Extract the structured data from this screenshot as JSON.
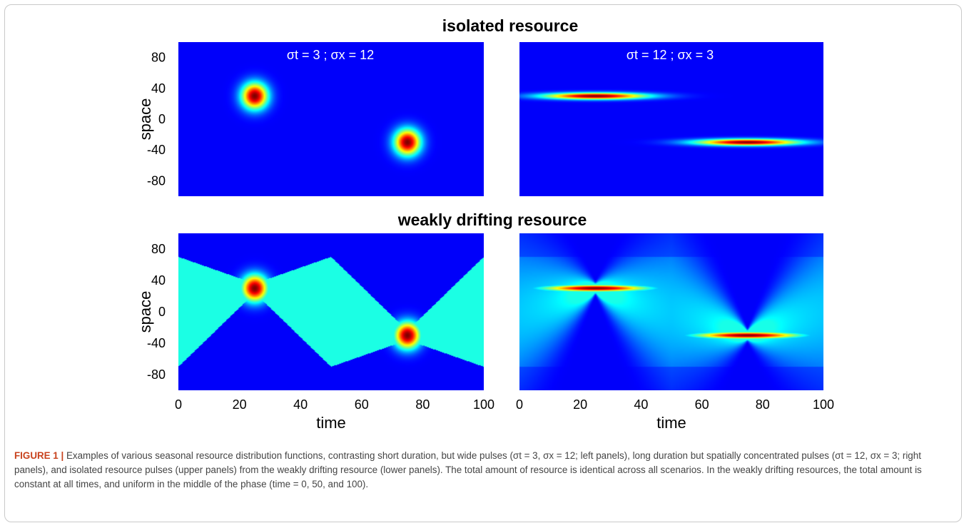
{
  "figure": {
    "caption_label": "FIGURE 1 |",
    "caption_text": "Examples of various seasonal resource distribution functions, contrasting short duration, but wide pulses (σt = 3, σx = 12; left panels), long duration but spatially concentrated pulses (σt = 12, σx = 3; right panels), and isolated resource pulses (upper panels) from the weakly drifting resource (lower panels). The total amount of resource is identical across all scenarios. In the weakly drifting resources, the total amount is constant at all times, and uniform in the middle of the phase (time = 0, 50, and 100)."
  },
  "chart_data": [
    {
      "type": "heatmap",
      "row_title": "isolated resource",
      "panel_label": "σt = 3 ; σx = 12",
      "ylabel": "space",
      "xlim": [
        0,
        100
      ],
      "ylim": [
        -100,
        100
      ],
      "yticks": [
        80,
        40,
        0,
        -40,
        -80
      ],
      "colormap": "jet",
      "sigma_t": 3,
      "sigma_x": 12,
      "pulses": [
        {
          "t": 25,
          "x": 30
        },
        {
          "t": 75,
          "x": -30
        }
      ]
    },
    {
      "type": "heatmap",
      "row_title": "isolated resource",
      "panel_label": "σt = 12 ; σx = 3",
      "xlim": [
        0,
        100
      ],
      "ylim": [
        -100,
        100
      ],
      "colormap": "jet",
      "sigma_t": 12,
      "sigma_x": 3,
      "pulses": [
        {
          "t": 25,
          "x": 30
        },
        {
          "t": 75,
          "x": -30
        }
      ]
    },
    {
      "type": "heatmap",
      "row_title": "weakly drifting resource",
      "ylabel": "space",
      "xlabel": "time",
      "xlim": [
        0,
        100
      ],
      "ylim": [
        -100,
        100
      ],
      "xticks": [
        0,
        20,
        40,
        60,
        80,
        100
      ],
      "yticks": [
        80,
        40,
        0,
        -40,
        -80
      ],
      "colormap": "jet",
      "sigma_t": 3,
      "sigma_x": 12,
      "uniform_band": [
        -70,
        70
      ],
      "pulses": [
        {
          "t": 25,
          "x": 30
        },
        {
          "t": 75,
          "x": -30
        }
      ]
    },
    {
      "type": "heatmap",
      "row_title": "weakly drifting resource",
      "xlabel": "time",
      "xlim": [
        0,
        100
      ],
      "ylim": [
        -100,
        100
      ],
      "xticks": [
        0,
        20,
        40,
        60,
        80,
        100
      ],
      "colormap": "jet",
      "sigma_t": 12,
      "sigma_x": 3,
      "uniform_band": [
        -70,
        70
      ],
      "pulses": [
        {
          "t": 25,
          "x": 30
        },
        {
          "t": 75,
          "x": -30
        }
      ]
    }
  ]
}
